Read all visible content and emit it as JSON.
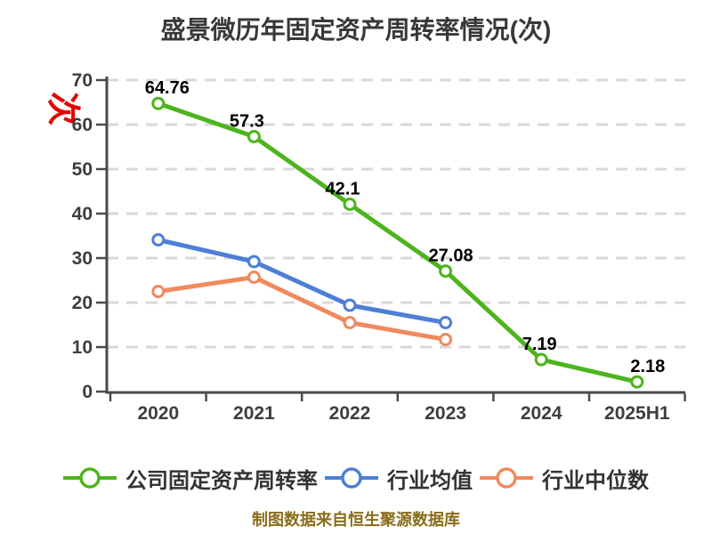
{
  "title": "盛景微历年固定资产周转率情况(次)",
  "y_axis_unit": "次",
  "footer": "制图数据来自恒生聚源数据库",
  "colors": {
    "title_text": "#383838",
    "y_unit_red": "#e60000",
    "axis": "#4a4a4a",
    "grid": "#d8d8d8",
    "tick_text": "#3d3d3d",
    "data_label": "#000000",
    "legend_text": "#333333",
    "footer_text": "#8a6d1a",
    "company_green": "#4db41d",
    "industry_mean_blue": "#4d7fd6",
    "industry_median_orange": "#ef8a5e"
  },
  "chart_data": {
    "type": "line",
    "title": "盛景微历年固定资产周转率情况(次)",
    "categories": [
      "2020",
      "2021",
      "2022",
      "2023",
      "2024",
      "2025H1"
    ],
    "series": [
      {
        "name": "公司固定资产周转率",
        "color": "#4db41d",
        "values": [
          64.76,
          57.3,
          42.1,
          27.08,
          7.19,
          2.18
        ],
        "data_labels": [
          "64.76",
          "57.3",
          "42.1",
          "27.08",
          "7.19",
          "2.18"
        ]
      },
      {
        "name": "行业均值",
        "color": "#4d7fd6",
        "values": [
          34.1,
          29.2,
          19.4,
          15.5
        ],
        "data_labels": []
      },
      {
        "name": "行业中位数",
        "color": "#ef8a5e",
        "values": [
          22.5,
          25.7,
          15.5,
          11.7
        ],
        "data_labels": []
      }
    ],
    "xlabel": "",
    "ylabel": "次",
    "ylim": [
      0,
      70
    ],
    "yticks": [
      0,
      10,
      20,
      30,
      40,
      50,
      60,
      70
    ],
    "grid": "horizontal-dashed",
    "legend_position": "bottom",
    "marker": "white-filled-circle"
  }
}
